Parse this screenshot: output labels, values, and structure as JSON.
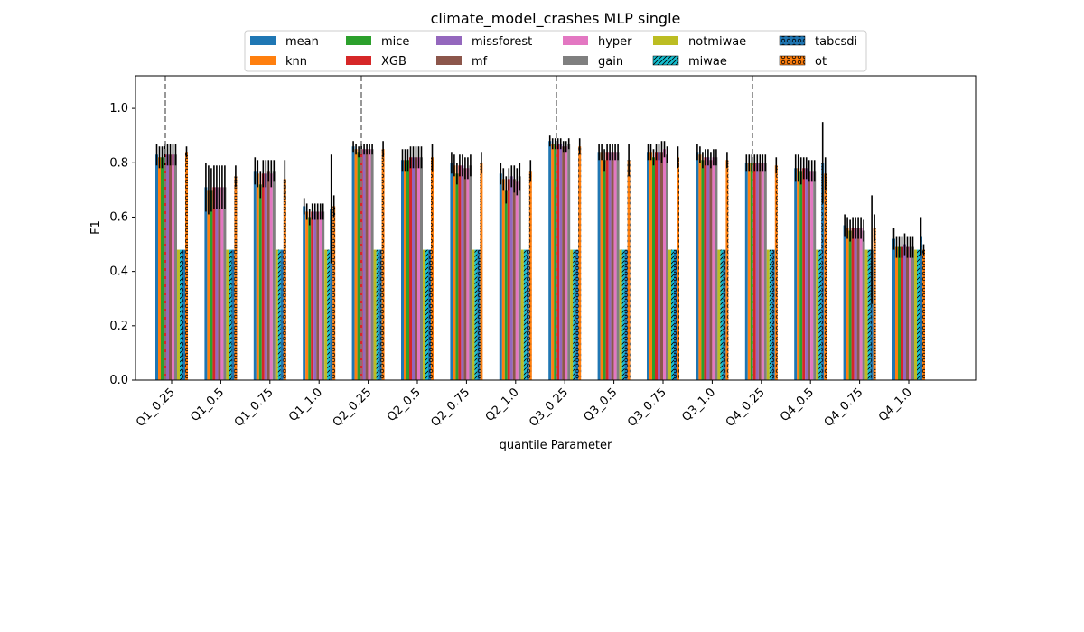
{
  "chart_data": {
    "type": "bar",
    "title": "climate_model_crashes MLP single",
    "xlabel": "quantile Parameter",
    "ylabel": "F1",
    "ylim": [
      0,
      1.12
    ],
    "yticks": [
      0.0,
      0.2,
      0.4,
      0.6,
      0.8,
      1.0
    ],
    "ytick_labels": [
      "0.0",
      "0.2",
      "0.4",
      "0.6",
      "0.8",
      "1.0"
    ],
    "legend_position": "top-center",
    "grid": false,
    "group_separators_after": [
      "Q1_0.75"
    ],
    "categories": [
      "Q1_0.25",
      "Q1_0.5",
      "Q1_0.75",
      "Q1_1.0",
      "Q2_0.25",
      "Q2_0.5",
      "Q2_0.75",
      "Q2_1.0",
      "Q3_0.25",
      "Q3_0.5",
      "Q3_0.75",
      "Q3_1.0",
      "Q4_0.25",
      "Q4_0.5",
      "Q4_0.75",
      "Q4_1.0"
    ],
    "series": [
      {
        "name": "mean",
        "color": "#1f77b4",
        "hatch": "none",
        "values": [
          0.83,
          0.71,
          0.77,
          0.64,
          0.86,
          0.81,
          0.8,
          0.76,
          0.88,
          0.84,
          0.84,
          0.84,
          0.8,
          0.78,
          0.57,
          0.52
        ],
        "errors": [
          0.04,
          0.09,
          0.05,
          0.03,
          0.02,
          0.04,
          0.04,
          0.04,
          0.02,
          0.03,
          0.03,
          0.03,
          0.03,
          0.05,
          0.04,
          0.04
        ]
      },
      {
        "name": "knn",
        "color": "#ff7f0e",
        "hatch": "none",
        "values": [
          0.82,
          0.7,
          0.76,
          0.62,
          0.85,
          0.81,
          0.79,
          0.74,
          0.87,
          0.84,
          0.84,
          0.83,
          0.8,
          0.78,
          0.56,
          0.49
        ],
        "errors": [
          0.04,
          0.09,
          0.05,
          0.03,
          0.02,
          0.04,
          0.04,
          0.04,
          0.02,
          0.03,
          0.03,
          0.03,
          0.03,
          0.05,
          0.04,
          0.04
        ]
      },
      {
        "name": "mice",
        "color": "#2ca02c",
        "hatch": "none",
        "values": [
          0.82,
          0.7,
          0.72,
          0.6,
          0.84,
          0.81,
          0.76,
          0.7,
          0.87,
          0.81,
          0.82,
          0.81,
          0.8,
          0.77,
          0.55,
          0.49
        ],
        "errors": [
          0.04,
          0.08,
          0.05,
          0.03,
          0.02,
          0.04,
          0.04,
          0.05,
          0.02,
          0.04,
          0.03,
          0.03,
          0.03,
          0.05,
          0.04,
          0.04
        ]
      },
      {
        "name": "XGB",
        "color": "#d62728",
        "hatch": "none",
        "values": [
          0.83,
          0.71,
          0.76,
          0.62,
          0.85,
          0.82,
          0.79,
          0.74,
          0.87,
          0.84,
          0.84,
          0.82,
          0.8,
          0.78,
          0.56,
          0.49
        ],
        "errors": [
          0.04,
          0.08,
          0.05,
          0.03,
          0.02,
          0.04,
          0.04,
          0.04,
          0.02,
          0.03,
          0.03,
          0.03,
          0.03,
          0.04,
          0.04,
          0.04
        ]
      },
      {
        "name": "missforest",
        "color": "#9467bd",
        "hatch": "none",
        "values": [
          0.83,
          0.71,
          0.76,
          0.62,
          0.85,
          0.82,
          0.79,
          0.75,
          0.87,
          0.84,
          0.84,
          0.82,
          0.8,
          0.78,
          0.56,
          0.5
        ],
        "errors": [
          0.04,
          0.08,
          0.05,
          0.03,
          0.02,
          0.04,
          0.04,
          0.04,
          0.02,
          0.03,
          0.03,
          0.03,
          0.03,
          0.04,
          0.04,
          0.04
        ]
      },
      {
        "name": "mf",
        "color": "#8c564b",
        "hatch": "none",
        "values": [
          0.83,
          0.71,
          0.77,
          0.62,
          0.85,
          0.82,
          0.78,
          0.74,
          0.86,
          0.84,
          0.84,
          0.81,
          0.8,
          0.77,
          0.56,
          0.49
        ],
        "errors": [
          0.04,
          0.08,
          0.04,
          0.03,
          0.02,
          0.04,
          0.04,
          0.05,
          0.02,
          0.03,
          0.04,
          0.03,
          0.03,
          0.04,
          0.04,
          0.04
        ]
      },
      {
        "name": "hyper",
        "color": "#e377c2",
        "hatch": "none",
        "values": [
          0.83,
          0.71,
          0.76,
          0.62,
          0.85,
          0.82,
          0.78,
          0.73,
          0.86,
          0.84,
          0.85,
          0.82,
          0.8,
          0.77,
          0.56,
          0.49
        ],
        "errors": [
          0.04,
          0.08,
          0.05,
          0.03,
          0.02,
          0.04,
          0.04,
          0.05,
          0.02,
          0.03,
          0.03,
          0.03,
          0.03,
          0.04,
          0.04,
          0.04
        ]
      },
      {
        "name": "gain",
        "color": "#7f7f7f",
        "hatch": "none",
        "values": [
          0.83,
          0.71,
          0.77,
          0.62,
          0.85,
          0.82,
          0.79,
          0.75,
          0.87,
          0.84,
          0.83,
          0.82,
          0.8,
          0.77,
          0.55,
          0.49
        ],
        "errors": [
          0.04,
          0.08,
          0.04,
          0.03,
          0.02,
          0.04,
          0.04,
          0.05,
          0.02,
          0.03,
          0.03,
          0.03,
          0.03,
          0.04,
          0.04,
          0.04
        ]
      },
      {
        "name": "notmiwae",
        "color": "#bcbd22",
        "hatch": "none",
        "values": [
          0.48,
          0.48,
          0.48,
          0.48,
          0.48,
          0.48,
          0.48,
          0.48,
          0.48,
          0.48,
          0.48,
          0.48,
          0.48,
          0.48,
          0.48,
          0.48
        ],
        "errors": [
          0,
          0,
          0,
          0,
          0,
          0,
          0,
          0,
          0,
          0,
          0,
          0,
          0,
          0,
          0,
          0
        ]
      },
      {
        "name": "miwae",
        "color": "#17becf",
        "hatch": "diag",
        "values": [
          0.48,
          0.48,
          0.48,
          0.48,
          0.48,
          0.48,
          0.48,
          0.48,
          0.48,
          0.48,
          0.48,
          0.48,
          0.48,
          0.48,
          0.48,
          0.48
        ],
        "errors": [
          0,
          0,
          0,
          0,
          0,
          0,
          0,
          0,
          0,
          0,
          0,
          0,
          0,
          0,
          0,
          0
        ]
      },
      {
        "name": "tabcsdi",
        "color": "#1f77b4",
        "hatch": "circle",
        "values": [
          0.48,
          0.48,
          0.48,
          0.63,
          0.48,
          0.48,
          0.48,
          0.48,
          0.48,
          0.48,
          0.48,
          0.48,
          0.48,
          0.8,
          0.48,
          0.53
        ],
        "errors": [
          0,
          0,
          0,
          0.2,
          0,
          0,
          0,
          0,
          0,
          0,
          0,
          0,
          0,
          0.15,
          0.2,
          0.07
        ]
      },
      {
        "name": "ot",
        "color": "#ff7f0e",
        "hatch": "circle",
        "values": [
          0.84,
          0.75,
          0.74,
          0.64,
          0.85,
          0.82,
          0.8,
          0.77,
          0.86,
          0.81,
          0.82,
          0.81,
          0.79,
          0.76,
          0.56,
          0.48
        ],
        "errors": [
          0.02,
          0.04,
          0.07,
          0.04,
          0.03,
          0.05,
          0.04,
          0.04,
          0.03,
          0.06,
          0.04,
          0.03,
          0.03,
          0.06,
          0.05,
          0.02
        ]
      }
    ]
  }
}
